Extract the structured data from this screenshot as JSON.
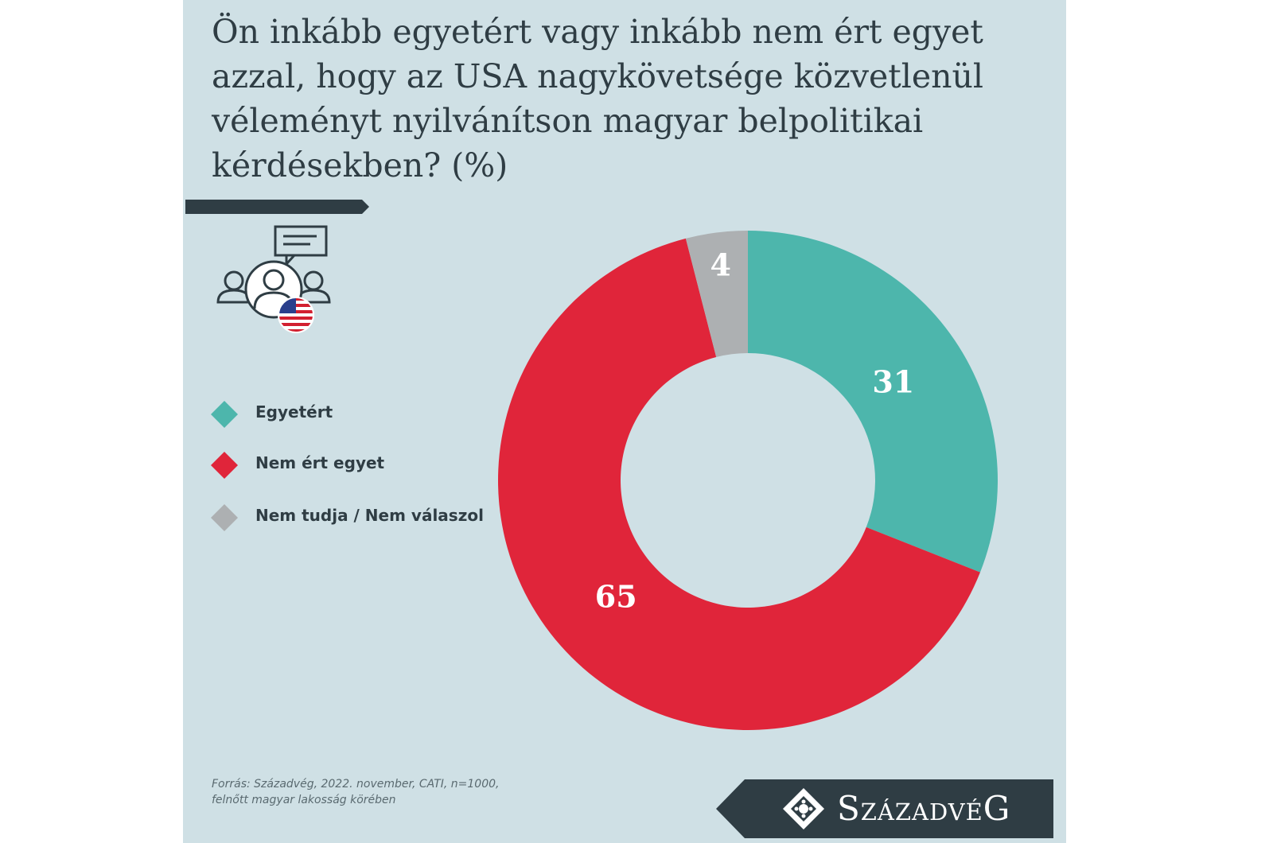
{
  "title": "Ön inkább egyetért vagy inkább nem ért egyet azzal, hogy az USA nagykövetsége közvetlenül véleményt nyilvánítson magyar belpolitikai kérdésekben? (%)",
  "source": {
    "line1": "Forrás: Századvég, 2022. november, CATI, n=1000,",
    "line2": "felnőtt magyar lakosság körében"
  },
  "logo": {
    "text": "SzázadvéG"
  },
  "icons": {
    "illustration": "people-speech-us-flag-icon",
    "logo_mark": "ornament-diamond-icon"
  },
  "colors": {
    "agree": "#4db6ac",
    "disagree": "#e0253a",
    "dont_know": "#adb0b2",
    "dark": "#2f3d44",
    "background": "#cfe0e5"
  },
  "chart_data": {
    "type": "pie",
    "donut": true,
    "title": "Ön inkább egyetért vagy inkább nem ért egyet azzal, hogy az USA nagykövetsége közvetlenül véleményt nyilvánítson magyar belpolitikai kérdésekben? (%)",
    "legend_position": "left",
    "slices": [
      {
        "name": "Egyetért",
        "value": 31,
        "color": "#4db6ac"
      },
      {
        "name": "Nem ért egyet",
        "value": 65,
        "color": "#e0253a"
      },
      {
        "name": "Nem tudja / Nem válaszol",
        "value": 4,
        "color": "#adb0b2"
      }
    ]
  }
}
